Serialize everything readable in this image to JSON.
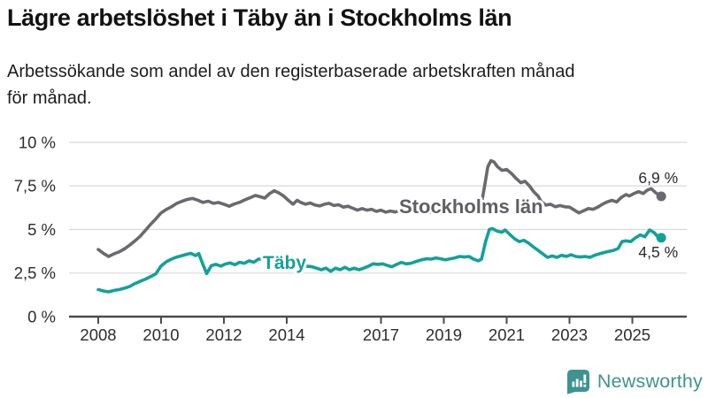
{
  "header": {
    "title": "Lägre arbetslöshet i Täby än i Stockholms län",
    "subtitle_lines": [
      "Arbetssökande som andel av den registerbaserade arbetskraften månad",
      "för månad."
    ]
  },
  "footer": {
    "brand": "Newsworthy"
  },
  "colors": {
    "stockholm_line": "#696970",
    "stockholm_label": "#5e5e66",
    "taby_line": "#12a19a",
    "grid": "#dbdbdb",
    "axis": "#4b4b4b",
    "tick_text": "#2d2d2d",
    "value_label_text": "#2b2b2b",
    "brand": "#3e938f"
  },
  "chart_data": {
    "type": "line",
    "title": "Lägre arbetslöshet i Täby än i Stockholms län",
    "subtitle": "Arbetssökande som andel av den registerbaserade arbetskraften månad för månad.",
    "xlabel": "",
    "ylabel": "",
    "ylim": [
      0,
      10
    ],
    "x_range": [
      2008.0,
      2025.92
    ],
    "grid": "horizontal",
    "legend_position": "inline-labels",
    "y_ticks": [
      {
        "v": 0,
        "label": "0 %"
      },
      {
        "v": 2.5,
        "label": "2,5 %"
      },
      {
        "v": 5,
        "label": "5 %"
      },
      {
        "v": 7.5,
        "label": "7,5 %"
      },
      {
        "v": 10,
        "label": "10 %"
      }
    ],
    "x_ticks": [
      {
        "t": 2008,
        "label": "2008"
      },
      {
        "t": 2010,
        "label": "2010"
      },
      {
        "t": 2012,
        "label": "2012"
      },
      {
        "t": 2014,
        "label": "2014"
      },
      {
        "t": 2017,
        "label": "2017"
      },
      {
        "t": 2019,
        "label": "2019"
      },
      {
        "t": 2021,
        "label": "2021"
      },
      {
        "t": 2023,
        "label": "2023"
      },
      {
        "t": 2025,
        "label": "2025"
      }
    ],
    "series": [
      {
        "name": "Stockholms län",
        "color": "#696970",
        "end_label": "6,9 %",
        "end_value": 6.9,
        "points": [
          [
            2008.0,
            3.85
          ],
          [
            2008.17,
            3.62
          ],
          [
            2008.33,
            3.45
          ],
          [
            2008.5,
            3.6
          ],
          [
            2008.67,
            3.72
          ],
          [
            2008.83,
            3.88
          ],
          [
            2009.0,
            4.1
          ],
          [
            2009.17,
            4.35
          ],
          [
            2009.33,
            4.6
          ],
          [
            2009.5,
            4.95
          ],
          [
            2009.67,
            5.3
          ],
          [
            2009.83,
            5.6
          ],
          [
            2010.0,
            5.95
          ],
          [
            2010.17,
            6.15
          ],
          [
            2010.33,
            6.3
          ],
          [
            2010.5,
            6.5
          ],
          [
            2010.67,
            6.62
          ],
          [
            2010.83,
            6.72
          ],
          [
            2011.0,
            6.78
          ],
          [
            2011.17,
            6.68
          ],
          [
            2011.33,
            6.55
          ],
          [
            2011.5,
            6.62
          ],
          [
            2011.67,
            6.5
          ],
          [
            2011.83,
            6.55
          ],
          [
            2012.0,
            6.45
          ],
          [
            2012.17,
            6.33
          ],
          [
            2012.33,
            6.46
          ],
          [
            2012.5,
            6.56
          ],
          [
            2012.67,
            6.7
          ],
          [
            2012.83,
            6.82
          ],
          [
            2013.0,
            6.95
          ],
          [
            2013.15,
            6.88
          ],
          [
            2013.3,
            6.8
          ],
          [
            2013.45,
            7.05
          ],
          [
            2013.6,
            7.22
          ],
          [
            2013.75,
            7.1
          ],
          [
            2013.9,
            6.92
          ],
          [
            2014.05,
            6.67
          ],
          [
            2014.2,
            6.45
          ],
          [
            2014.33,
            6.67
          ],
          [
            2014.45,
            6.55
          ],
          [
            2014.6,
            6.45
          ],
          [
            2014.75,
            6.52
          ],
          [
            2014.9,
            6.4
          ],
          [
            2015.05,
            6.35
          ],
          [
            2015.2,
            6.45
          ],
          [
            2015.35,
            6.5
          ],
          [
            2015.5,
            6.37
          ],
          [
            2015.65,
            6.42
          ],
          [
            2015.8,
            6.28
          ],
          [
            2015.95,
            6.33
          ],
          [
            2016.1,
            6.22
          ],
          [
            2016.25,
            6.11
          ],
          [
            2016.4,
            6.2
          ],
          [
            2016.55,
            6.11
          ],
          [
            2016.7,
            6.16
          ],
          [
            2016.85,
            6.04
          ],
          [
            2017.0,
            6.11
          ],
          [
            2017.15,
            5.99
          ],
          [
            2017.3,
            6.06
          ],
          [
            2017.45,
            6.0
          ],
          [
            2017.6,
            6.08
          ],
          [
            2017.75,
            6.0
          ],
          [
            2017.9,
            6.05
          ],
          [
            2018.1,
            5.98
          ],
          [
            2018.3,
            6.02
          ],
          [
            2018.5,
            5.95
          ],
          [
            2018.7,
            6.0
          ],
          [
            2018.9,
            5.93
          ],
          [
            2019.1,
            5.97
          ],
          [
            2019.3,
            6.0
          ],
          [
            2019.5,
            5.95
          ],
          [
            2019.7,
            6.0
          ],
          [
            2019.9,
            6.05
          ],
          [
            2020.05,
            6.1
          ],
          [
            2020.2,
            6.5
          ],
          [
            2020.3,
            7.5
          ],
          [
            2020.4,
            8.6
          ],
          [
            2020.5,
            8.95
          ],
          [
            2020.6,
            8.87
          ],
          [
            2020.7,
            8.61
          ],
          [
            2020.85,
            8.39
          ],
          [
            2021.0,
            8.44
          ],
          [
            2021.15,
            8.22
          ],
          [
            2021.3,
            7.93
          ],
          [
            2021.45,
            7.68
          ],
          [
            2021.58,
            7.77
          ],
          [
            2021.72,
            7.51
          ],
          [
            2021.86,
            7.17
          ],
          [
            2022.0,
            6.92
          ],
          [
            2022.1,
            6.6
          ],
          [
            2022.25,
            6.4
          ],
          [
            2022.4,
            6.45
          ],
          [
            2022.55,
            6.3
          ],
          [
            2022.7,
            6.37
          ],
          [
            2022.85,
            6.3
          ],
          [
            2023.0,
            6.28
          ],
          [
            2023.15,
            6.12
          ],
          [
            2023.3,
            5.95
          ],
          [
            2023.45,
            6.08
          ],
          [
            2023.6,
            6.2
          ],
          [
            2023.75,
            6.16
          ],
          [
            2023.9,
            6.28
          ],
          [
            2024.05,
            6.45
          ],
          [
            2024.2,
            6.58
          ],
          [
            2024.35,
            6.67
          ],
          [
            2024.5,
            6.58
          ],
          [
            2024.65,
            6.84
          ],
          [
            2024.8,
            7.0
          ],
          [
            2024.9,
            6.92
          ],
          [
            2025.05,
            7.06
          ],
          [
            2025.2,
            7.17
          ],
          [
            2025.35,
            7.06
          ],
          [
            2025.48,
            7.26
          ],
          [
            2025.6,
            7.34
          ],
          [
            2025.75,
            7.1
          ],
          [
            2025.92,
            6.9
          ]
        ]
      },
      {
        "name": "Täby",
        "color": "#12a19a",
        "end_label": "4,5 %",
        "end_value": 4.5,
        "points": [
          [
            2008.0,
            1.55
          ],
          [
            2008.17,
            1.47
          ],
          [
            2008.33,
            1.42
          ],
          [
            2008.5,
            1.5
          ],
          [
            2008.67,
            1.55
          ],
          [
            2008.83,
            1.63
          ],
          [
            2009.0,
            1.73
          ],
          [
            2009.17,
            1.9
          ],
          [
            2009.33,
            2.02
          ],
          [
            2009.5,
            2.15
          ],
          [
            2009.67,
            2.3
          ],
          [
            2009.83,
            2.45
          ],
          [
            2010.0,
            2.9
          ],
          [
            2010.17,
            3.15
          ],
          [
            2010.33,
            3.3
          ],
          [
            2010.5,
            3.42
          ],
          [
            2010.67,
            3.5
          ],
          [
            2010.83,
            3.58
          ],
          [
            2010.95,
            3.63
          ],
          [
            2011.1,
            3.5
          ],
          [
            2011.2,
            3.62
          ],
          [
            2011.3,
            3.15
          ],
          [
            2011.45,
            2.47
          ],
          [
            2011.6,
            2.92
          ],
          [
            2011.75,
            3.0
          ],
          [
            2011.9,
            2.9
          ],
          [
            2012.05,
            3.02
          ],
          [
            2012.2,
            3.08
          ],
          [
            2012.35,
            2.98
          ],
          [
            2012.5,
            3.12
          ],
          [
            2012.65,
            3.06
          ],
          [
            2012.8,
            3.2
          ],
          [
            2012.95,
            3.12
          ],
          [
            2013.1,
            3.3
          ],
          [
            2013.25,
            3.32
          ],
          [
            2013.5,
            3.28
          ],
          [
            2013.75,
            3.2
          ],
          [
            2014.0,
            3.12
          ],
          [
            2014.25,
            3.0
          ],
          [
            2014.5,
            2.92
          ],
          [
            2014.8,
            2.86
          ],
          [
            2014.95,
            2.78
          ],
          [
            2015.1,
            2.69
          ],
          [
            2015.25,
            2.78
          ],
          [
            2015.4,
            2.6
          ],
          [
            2015.55,
            2.78
          ],
          [
            2015.7,
            2.69
          ],
          [
            2015.85,
            2.83
          ],
          [
            2016.0,
            2.69
          ],
          [
            2016.15,
            2.78
          ],
          [
            2016.3,
            2.69
          ],
          [
            2016.45,
            2.78
          ],
          [
            2016.6,
            2.89
          ],
          [
            2016.75,
            3.03
          ],
          [
            2016.9,
            3.0
          ],
          [
            2017.05,
            3.03
          ],
          [
            2017.2,
            2.94
          ],
          [
            2017.35,
            2.86
          ],
          [
            2017.5,
            3.0
          ],
          [
            2017.65,
            3.11
          ],
          [
            2017.8,
            3.03
          ],
          [
            2017.95,
            3.06
          ],
          [
            2018.1,
            3.15
          ],
          [
            2018.3,
            3.26
          ],
          [
            2018.45,
            3.32
          ],
          [
            2018.6,
            3.3
          ],
          [
            2018.75,
            3.37
          ],
          [
            2018.9,
            3.32
          ],
          [
            2019.05,
            3.26
          ],
          [
            2019.2,
            3.32
          ],
          [
            2019.35,
            3.37
          ],
          [
            2019.5,
            3.45
          ],
          [
            2019.65,
            3.42
          ],
          [
            2019.8,
            3.45
          ],
          [
            2019.95,
            3.3
          ],
          [
            2020.1,
            3.2
          ],
          [
            2020.2,
            3.3
          ],
          [
            2020.33,
            4.3
          ],
          [
            2020.45,
            5.0
          ],
          [
            2020.55,
            5.05
          ],
          [
            2020.7,
            4.9
          ],
          [
            2020.85,
            4.84
          ],
          [
            2020.95,
            4.97
          ],
          [
            2021.1,
            4.72
          ],
          [
            2021.25,
            4.47
          ],
          [
            2021.4,
            4.3
          ],
          [
            2021.55,
            4.38
          ],
          [
            2021.7,
            4.21
          ],
          [
            2021.85,
            4.0
          ],
          [
            2022.0,
            3.8
          ],
          [
            2022.15,
            3.6
          ],
          [
            2022.3,
            3.4
          ],
          [
            2022.45,
            3.48
          ],
          [
            2022.6,
            3.4
          ],
          [
            2022.75,
            3.52
          ],
          [
            2022.9,
            3.45
          ],
          [
            2023.05,
            3.55
          ],
          [
            2023.2,
            3.45
          ],
          [
            2023.35,
            3.42
          ],
          [
            2023.5,
            3.45
          ],
          [
            2023.65,
            3.4
          ],
          [
            2023.8,
            3.52
          ],
          [
            2023.95,
            3.6
          ],
          [
            2024.1,
            3.68
          ],
          [
            2024.25,
            3.74
          ],
          [
            2024.4,
            3.8
          ],
          [
            2024.55,
            3.91
          ],
          [
            2024.67,
            4.3
          ],
          [
            2024.8,
            4.35
          ],
          [
            2024.95,
            4.3
          ],
          [
            2025.1,
            4.52
          ],
          [
            2025.25,
            4.69
          ],
          [
            2025.4,
            4.58
          ],
          [
            2025.55,
            4.97
          ],
          [
            2025.7,
            4.81
          ],
          [
            2025.8,
            4.6
          ],
          [
            2025.92,
            4.52
          ]
        ]
      }
    ]
  }
}
